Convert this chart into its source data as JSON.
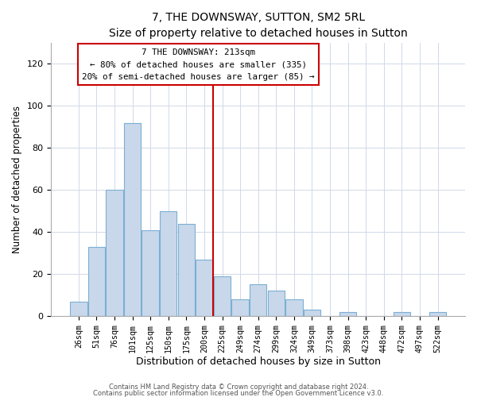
{
  "title": "7, THE DOWNSWAY, SUTTON, SM2 5RL",
  "subtitle": "Size of property relative to detached houses in Sutton",
  "xlabel": "Distribution of detached houses by size in Sutton",
  "ylabel": "Number of detached properties",
  "bar_labels": [
    "26sqm",
    "51sqm",
    "76sqm",
    "101sqm",
    "125sqm",
    "150sqm",
    "175sqm",
    "200sqm",
    "225sqm",
    "249sqm",
    "274sqm",
    "299sqm",
    "324sqm",
    "349sqm",
    "373sqm",
    "398sqm",
    "423sqm",
    "448sqm",
    "472sqm",
    "497sqm",
    "522sqm"
  ],
  "bar_heights": [
    7,
    33,
    60,
    92,
    41,
    50,
    44,
    27,
    19,
    8,
    15,
    12,
    8,
    3,
    0,
    2,
    0,
    0,
    2,
    0,
    2
  ],
  "bar_color": "#c8d8ea",
  "bar_edge_color": "#7bafd4",
  "vline_index": 8,
  "vline_color": "#cc0000",
  "ylim": [
    0,
    130
  ],
  "yticks": [
    0,
    20,
    40,
    60,
    80,
    100,
    120
  ],
  "annotation_line1": "7 THE DOWNSWAY: 213sqm",
  "annotation_line2": "← 80% of detached houses are smaller (335)",
  "annotation_line3": "20% of semi-detached houses are larger (85) →",
  "footer1": "Contains HM Land Registry data © Crown copyright and database right 2024.",
  "footer2": "Contains public sector information licensed under the Open Government Licence v3.0."
}
